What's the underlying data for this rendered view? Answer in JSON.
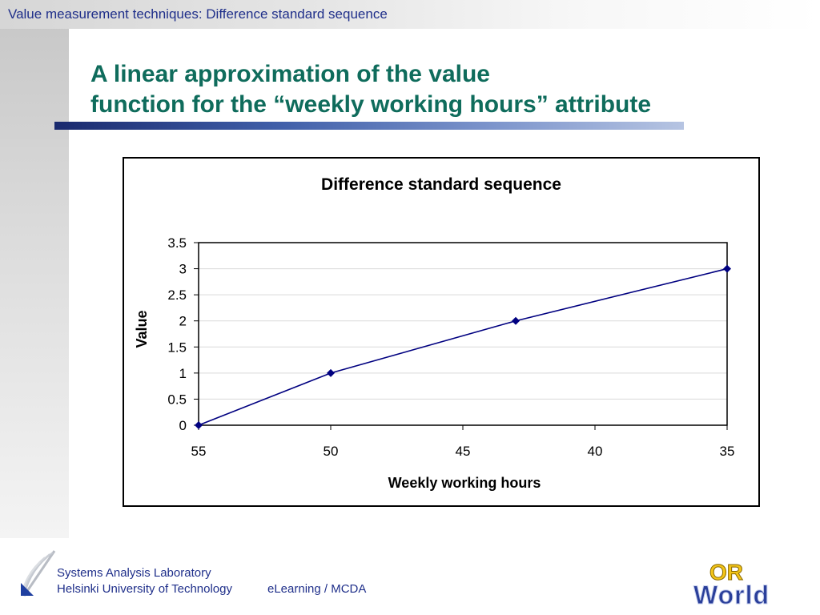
{
  "header": {
    "title": "Value measurement techniques: Difference standard sequence"
  },
  "slide": {
    "title_line1": "A linear approximation of the value",
    "title_line2": "function for the “weekly working hours” attribute"
  },
  "chart_data": {
    "type": "line",
    "title": "Difference standard sequence",
    "xlabel": "Weekly working hours",
    "ylabel": "Value",
    "x_reversed": true,
    "xlim": [
      55,
      35
    ],
    "ylim": [
      0,
      3.5
    ],
    "x_ticks": [
      55,
      50,
      45,
      40,
      35
    ],
    "y_ticks": [
      0,
      0.5,
      1,
      1.5,
      2,
      2.5,
      3,
      3.5
    ],
    "grid": true,
    "legend": "none",
    "series": [
      {
        "x": [
          55,
          50,
          43,
          35
        ],
        "y": [
          0,
          1,
          2,
          3
        ],
        "color": "#000080",
        "marker": "diamond"
      }
    ]
  },
  "footer": {
    "lab_line1": "Systems Analysis Laboratory",
    "lab_line2": "Helsinki University of Technology",
    "course": "eLearning / MCDA",
    "logo_text": "OR World"
  },
  "colors": {
    "title": "#0f6c5c",
    "header_text": "#1f2f8a",
    "series": "#000080",
    "logo_yellow": "#f2c418",
    "logo_blue": "#2a3f9a"
  }
}
